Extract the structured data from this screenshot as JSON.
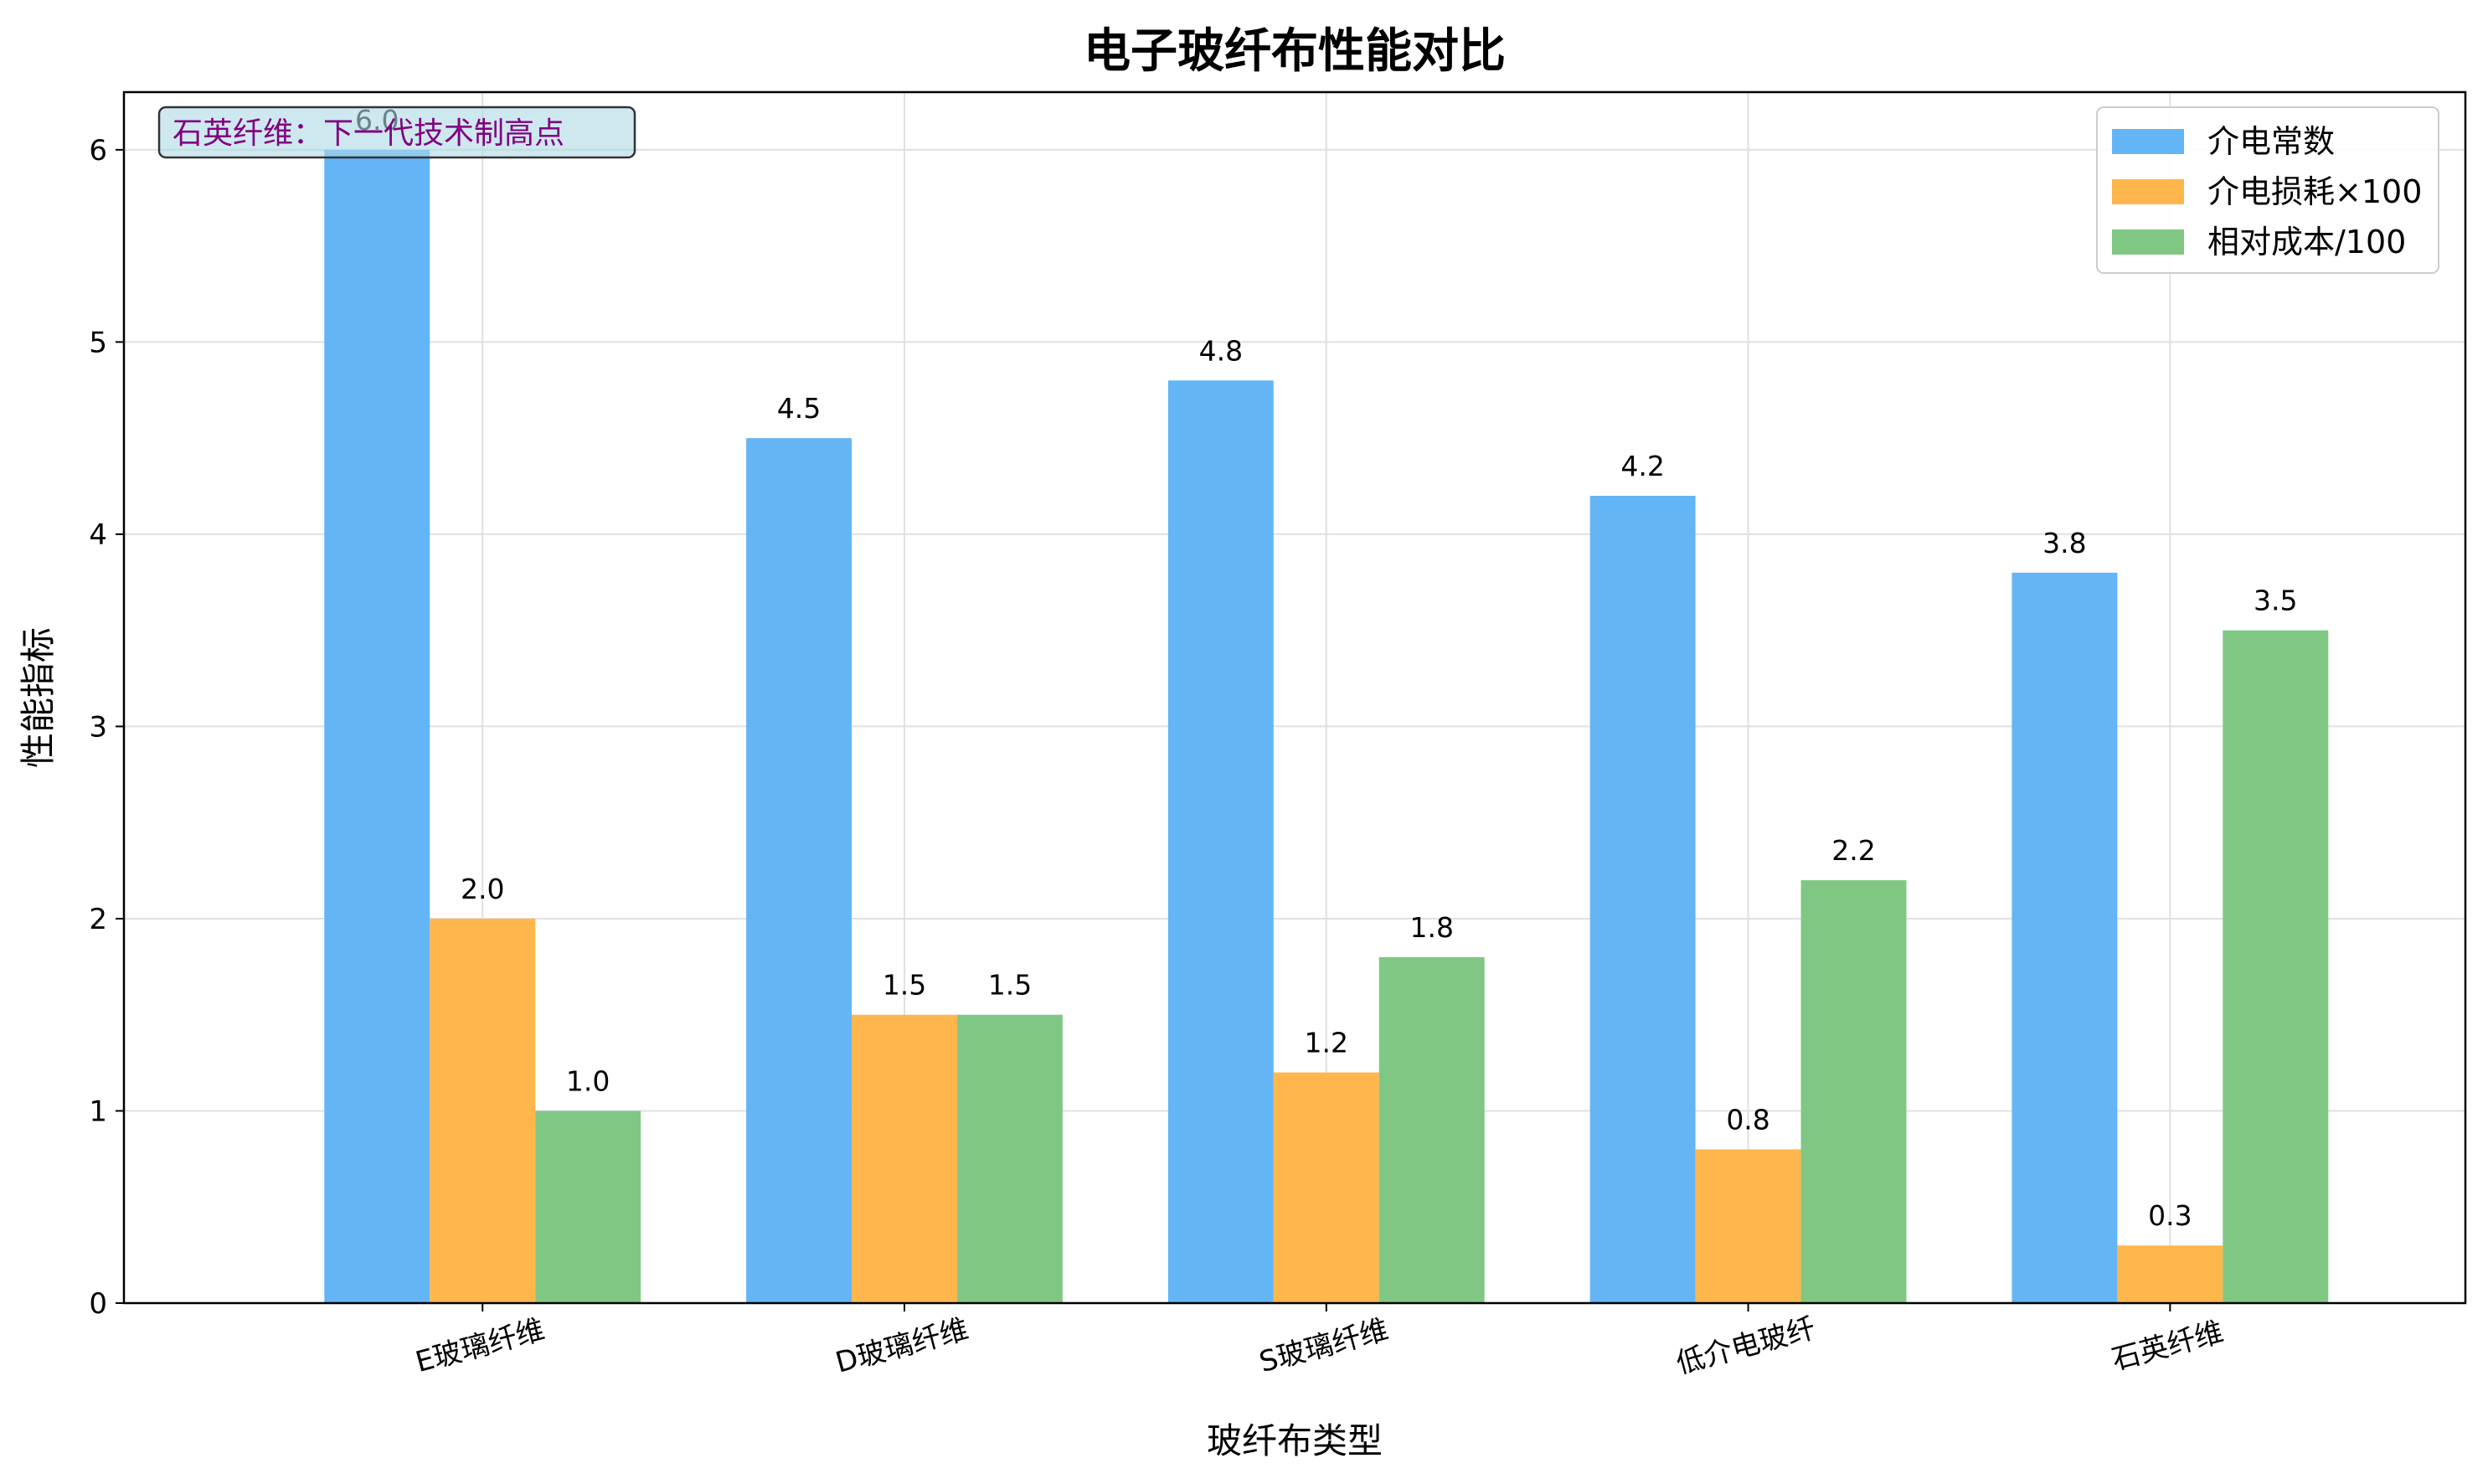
{
  "chart_data": {
    "type": "bar",
    "title": "电子玻纤布性能对比",
    "xlabel": "玻纤布类型",
    "ylabel": "性能指标",
    "categories": [
      "E玻璃纤维",
      "D玻璃纤维",
      "S玻璃纤维",
      "低介电玻纤",
      "石英纤维"
    ],
    "series": [
      {
        "name": "介电常数",
        "values": [
          6.0,
          4.5,
          4.8,
          4.2,
          3.8
        ],
        "color": "#64b5f6"
      },
      {
        "name": "介电损耗×100",
        "values": [
          2.0,
          1.5,
          1.2,
          0.8,
          0.3
        ],
        "color": "#ffb74d"
      },
      {
        "name": "相对成本/100",
        "values": [
          1.0,
          1.5,
          1.8,
          2.2,
          3.5
        ],
        "color": "#81c784"
      }
    ],
    "data_labels": [
      [
        "6.0",
        "4.5",
        "4.8",
        "4.2",
        "3.8"
      ],
      [
        "2.0",
        "1.5",
        "1.2",
        "0.8",
        "0.3"
      ],
      [
        "1.0",
        "1.5",
        "1.8",
        "2.2",
        "3.5"
      ]
    ],
    "ylim": [
      0,
      6.3
    ],
    "yticks": [
      "0",
      "1",
      "2",
      "3",
      "4",
      "5",
      "6"
    ],
    "grid": true,
    "legend_position": "top-right",
    "annotation": {
      "text": "石英纤维：下一代技术制高点",
      "text_color": "#800080",
      "box_color": "#add8e6",
      "position": "top-left"
    }
  }
}
